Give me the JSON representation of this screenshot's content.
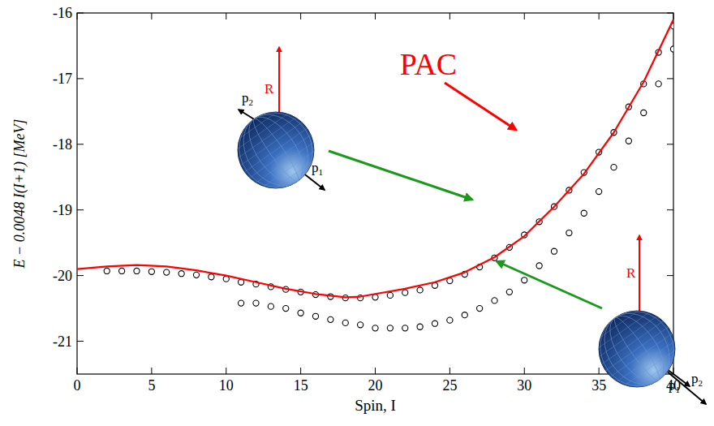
{
  "chart_data": {
    "type": "scatter",
    "x_label": "Spin, I",
    "y_label": "E − 0.0048 I(I+1) [MeV]",
    "xlim": [
      0,
      40
    ],
    "ylim": [
      -21.5,
      -16
    ],
    "xticks": [
      0,
      5,
      10,
      15,
      20,
      25,
      30,
      35,
      40
    ],
    "yticks": [
      -21,
      -20,
      -19,
      -18,
      -17,
      -16
    ],
    "grid": false,
    "series": [
      {
        "type": "scatter",
        "marker": "open-circle",
        "color": "#000000",
        "x": [
          2,
          3,
          4,
          5,
          6,
          7,
          8,
          9,
          10,
          11,
          12,
          13,
          14,
          15,
          16,
          17,
          18,
          19,
          20,
          21,
          22,
          23,
          24,
          25,
          26,
          27,
          28,
          29,
          30,
          31,
          32,
          33,
          34,
          35,
          36,
          37,
          38,
          39,
          40
        ],
        "values": [
          -19.93,
          -19.93,
          -19.93,
          -19.94,
          -19.95,
          -19.97,
          -19.99,
          -20.02,
          -20.05,
          -20.1,
          -20.13,
          -20.17,
          -20.21,
          -20.25,
          -20.29,
          -20.32,
          -20.34,
          -20.34,
          -20.33,
          -20.3,
          -20.26,
          -20.22,
          -20.15,
          -20.08,
          -19.98,
          -19.87,
          -19.73,
          -19.57,
          -19.38,
          -19.18,
          -18.95,
          -18.7,
          -18.43,
          -18.12,
          -17.82,
          -17.43,
          -17.08,
          -16.6,
          -16.2
        ]
      },
      {
        "type": "scatter",
        "marker": "open-circle",
        "color": "#000000",
        "x": [
          11,
          12,
          13,
          14,
          15,
          16,
          17,
          18,
          19,
          20,
          21,
          22,
          23,
          24,
          25,
          26,
          27,
          28,
          29,
          30,
          31,
          32,
          33,
          34,
          35,
          36,
          37,
          38,
          39,
          40
        ],
        "values": [
          -20.42,
          -20.42,
          -20.47,
          -20.5,
          -20.57,
          -20.62,
          -20.67,
          -20.72,
          -20.75,
          -20.8,
          -20.8,
          -20.8,
          -20.78,
          -20.73,
          -20.68,
          -20.6,
          -20.5,
          -20.38,
          -20.25,
          -20.07,
          -19.85,
          -19.63,
          -19.35,
          -19.05,
          -18.72,
          -18.35,
          -17.95,
          -17.52,
          -17.08,
          -16.55
        ]
      },
      {
        "type": "line",
        "color": "#ff0000",
        "line_style": "solid",
        "x": [
          0,
          2,
          4,
          6,
          8,
          10,
          12,
          14,
          16,
          18,
          19,
          20,
          22,
          24,
          26,
          28,
          30,
          32,
          34,
          36,
          38,
          40
        ],
        "values": [
          -19.9,
          -19.86,
          -19.84,
          -19.86,
          -19.92,
          -20.0,
          -20.1,
          -20.2,
          -20.28,
          -20.33,
          -20.32,
          -20.28,
          -20.2,
          -20.1,
          -19.95,
          -19.72,
          -19.4,
          -18.95,
          -18.45,
          -17.82,
          -17.05,
          -16.1
        ]
      }
    ],
    "annotations": [
      {
        "text": "PAC",
        "color": "#ff0000"
      }
    ],
    "insets": [
      {
        "rotation_label": "R",
        "vector_labels": [
          {
            "text": "p",
            "subscript": "1"
          },
          {
            "text": "p",
            "subscript": "2"
          }
        ]
      },
      {
        "rotation_label": "R",
        "vector_labels": [
          {
            "text": "p",
            "subscript": "1"
          },
          {
            "text": "p",
            "subscript": "2"
          }
        ]
      }
    ]
  }
}
